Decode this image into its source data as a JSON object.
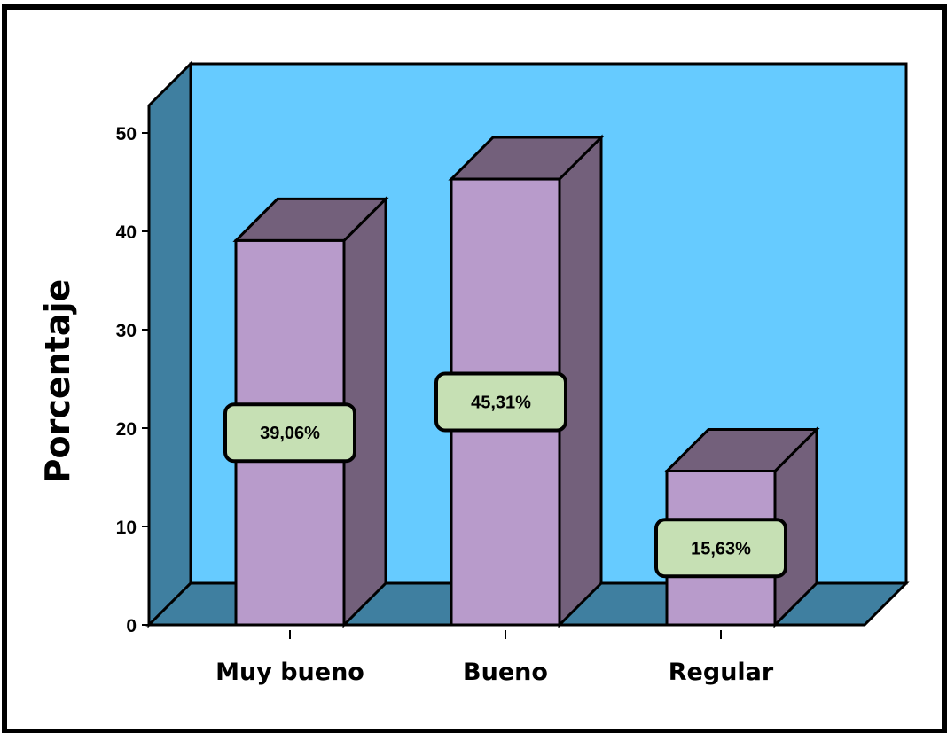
{
  "chart_data": {
    "type": "bar",
    "categories": [
      "Muy bueno",
      "Bueno",
      "Regular"
    ],
    "values": [
      39.06,
      45.31,
      15.63
    ],
    "data_labels": [
      "39,06%",
      "45,31%",
      "15,63%"
    ],
    "title": "",
    "xlabel": "",
    "ylabel": "Porcentaje",
    "ylim": [
      0,
      50
    ],
    "yticks": [
      0,
      10,
      20,
      30,
      40,
      50
    ],
    "grid": false,
    "style": "3d",
    "colors": {
      "bar_front": "#B89BCB",
      "bar_side": "#73607B",
      "bar_top": "#73607B",
      "back_wall": "#66CBFF",
      "side_wall": "#3F7FA0",
      "floor": "#3F7FA0",
      "label_box": "#C6E0B4"
    }
  }
}
